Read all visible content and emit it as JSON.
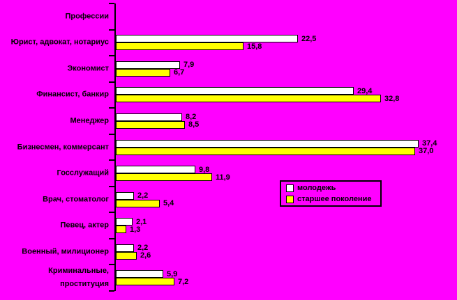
{
  "chart_data": {
    "type": "bar",
    "orientation": "horizontal",
    "axis_title": "Профессии",
    "categories": [
      "Юрист, адвокат, нотариус",
      "Экономист",
      "Финансист, банкир",
      "Менеджер",
      "Бизнесмен, коммерсант",
      "Госслужащий",
      "Врач, стоматолог",
      "Певец, актер",
      "Военный, милиционер",
      "Криминальные, проституция"
    ],
    "series": [
      {
        "name": "молодежь",
        "color": "#FFFFFF",
        "values": [
          22.5,
          7.9,
          29.4,
          8.2,
          37.4,
          9.8,
          2.2,
          2.1,
          2.2,
          5.9
        ]
      },
      {
        "name": "старшее поколение",
        "color": "#FFFF00",
        "values": [
          15.8,
          6.7,
          32.8,
          8.5,
          37.0,
          11.9,
          5.4,
          1.3,
          2.6,
          7.2
        ]
      }
    ],
    "value_labels_shown": true,
    "value_label_decimal_separator": ",",
    "background_color": "#FF00FF",
    "bar_border_color": "#000000",
    "xlim": [
      0,
      40
    ],
    "grid": false,
    "legend_position": "right-middle"
  },
  "legend": {
    "items": [
      {
        "label": "молодежь",
        "color": "#FFFFFF"
      },
      {
        "label": "старшее поколение",
        "color": "#FFFF00"
      }
    ]
  }
}
